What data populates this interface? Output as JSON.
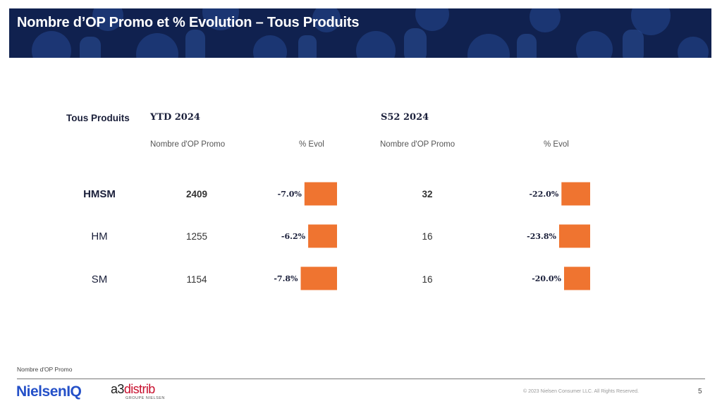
{
  "header": {
    "title": "Nombre d’OP Promo et % Evolution – Tous Produits"
  },
  "table": {
    "corner_label": "Tous Produits",
    "period_ytd": "YTD 2024",
    "period_s52": "S52 2024",
    "col_count_ytd": "Nombre d'OP Promo",
    "col_evol_ytd": "% Evol",
    "col_count_s52": "Nombre d'OP Promo",
    "col_evol_s52": "% Evol"
  },
  "chart_data": {
    "type": "bar",
    "orientation": "horizontal",
    "categories": [
      "HMSM",
      "HM",
      "SM"
    ],
    "series": [
      {
        "name": "YTD 2024",
        "counts": [
          "2409",
          "1255",
          "1154"
        ],
        "values": [
          -7.0,
          -6.2,
          -7.8
        ],
        "labels": [
          "-7.0%",
          "-6.2%",
          "-7.8%"
        ]
      },
      {
        "name": "S52 2024",
        "counts": [
          "32",
          "16",
          "16"
        ],
        "values": [
          -22.0,
          -23.8,
          -20.0
        ],
        "labels": [
          "-22.0%",
          "-23.8%",
          "-20.0%"
        ]
      }
    ],
    "bar_color": "#ef7430",
    "grid": false
  },
  "footer": {
    "note": "Nombre d'OP Promo",
    "logo_nielseniq": "NielsenIQ",
    "logo_a3_black": "a3",
    "logo_a3_red": "distrib",
    "logo_a3_sub": "GROUPE NIELSEN",
    "copyright": "© 2023 Nielsen Consumer LLC. All Rights Reserved.",
    "page_number": "5"
  }
}
